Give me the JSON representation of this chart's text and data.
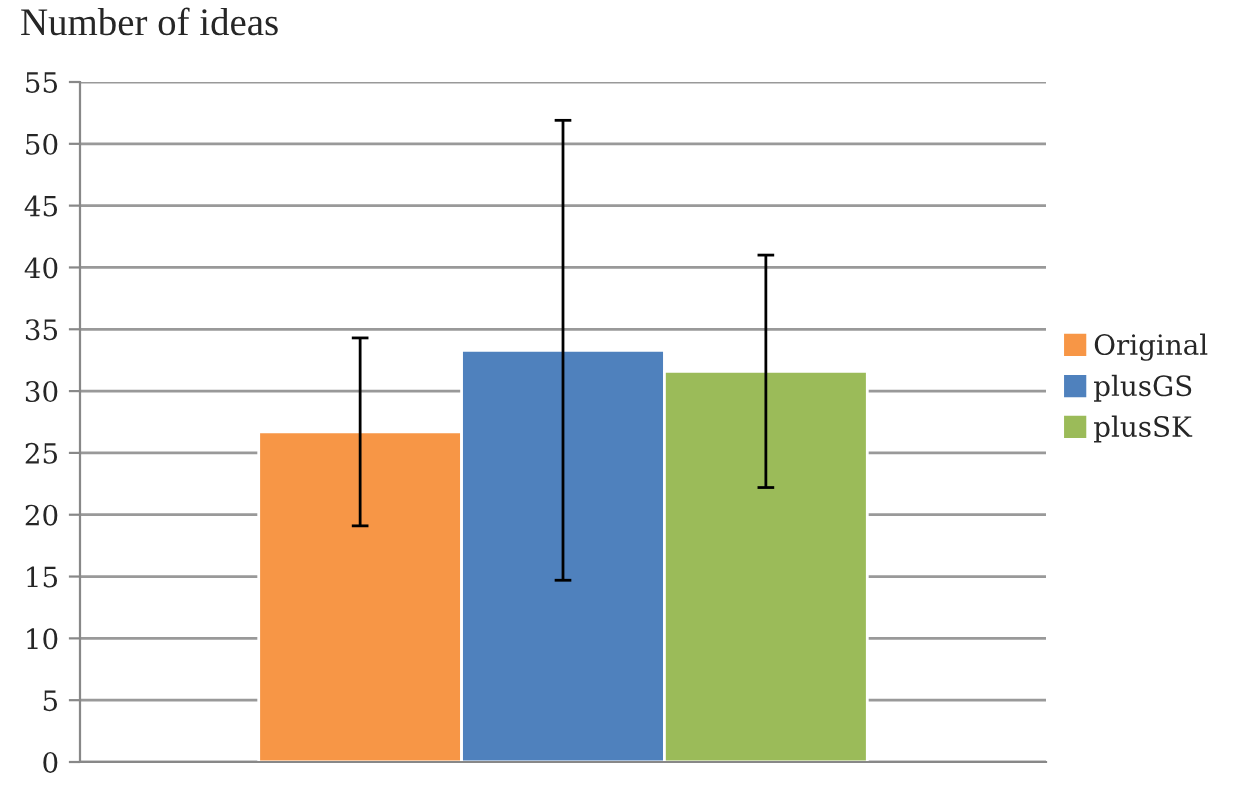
{
  "chart_data": {
    "type": "bar",
    "title": "Number of ideas",
    "categories": [
      null
    ],
    "series": [
      {
        "name": "Original",
        "color": "#f79646",
        "values": [
          26.7
        ],
        "errors": [
          7.6
        ]
      },
      {
        "name": "plusGS",
        "color": "#4f81bd",
        "values": [
          33.3
        ],
        "errors": [
          18.6
        ]
      },
      {
        "name": "plusSK",
        "color": "#9bbb59",
        "values": [
          31.6
        ],
        "errors": [
          9.4
        ]
      }
    ],
    "ylim": [
      0,
      55
    ],
    "yticks": [
      0,
      5,
      10,
      15,
      20,
      25,
      30,
      35,
      40,
      45,
      50,
      55
    ],
    "grid": "y",
    "legend": "right"
  }
}
